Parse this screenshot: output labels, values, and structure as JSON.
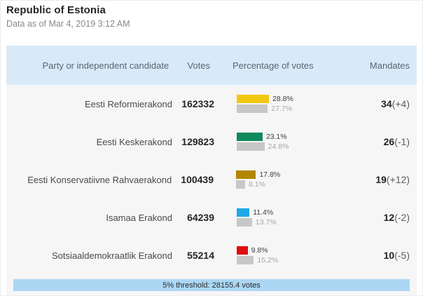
{
  "header": {
    "title": "Republic of Estonia",
    "subtitle": "Data as of Mar 4, 2019 3:12 AM"
  },
  "table": {
    "columns": [
      "Party or independent candidate",
      "Votes",
      "Percentage of votes",
      "Mandates"
    ],
    "prev_bar_color": "#c7c7c7",
    "rows": [
      {
        "party": "Eesti Reformierakond",
        "votes": "162332",
        "pct": 28.8,
        "pct_label": "28.8%",
        "prev_pct": 27.7,
        "prev_pct_label": "27.7%",
        "mandates": "34",
        "mandates_change": "(+4)",
        "color": "#f2c811"
      },
      {
        "party": "Eesti Keskerakond",
        "votes": "129823",
        "pct": 23.1,
        "pct_label": "23.1%",
        "prev_pct": 24.8,
        "prev_pct_label": "24.8%",
        "mandates": "26",
        "mandates_change": "(-1)",
        "color": "#0e8a5c"
      },
      {
        "party": "Eesti Konservatiivne Rahvaerakond",
        "votes": "100439",
        "pct": 17.8,
        "pct_label": "17.8%",
        "prev_pct": 8.1,
        "prev_pct_label": "8.1%",
        "mandates": "19",
        "mandates_change": "(+12)",
        "color": "#b38600"
      },
      {
        "party": "Isamaa Erakond",
        "votes": "64239",
        "pct": 11.4,
        "pct_label": "11.4%",
        "prev_pct": 13.7,
        "prev_pct_label": "13.7%",
        "mandates": "12",
        "mandates_change": "(-2)",
        "color": "#1da9e8"
      },
      {
        "party": "Sotsiaaldemokraatlik Erakond",
        "votes": "55214",
        "pct": 9.8,
        "pct_label": "9.8%",
        "prev_pct": 15.2,
        "prev_pct_label": "15.2%",
        "mandates": "10",
        "mandates_change": "(-5)",
        "color": "#e00d11"
      }
    ],
    "footer": {
      "threshold_label": "5% threshold: 28155.4 votes"
    }
  },
  "chart_data": {
    "type": "table",
    "title": "Republic of Estonia",
    "subtitle": "Data as of Mar 4, 2019 3:12 AM",
    "categories": [
      "Eesti Reformierakond",
      "Eesti Keskerakond",
      "Eesti Konservatiivne Rahvaerakond",
      "Isamaa Erakond",
      "Sotsiaaldemokraatlik Erakond"
    ],
    "votes": [
      162332,
      129823,
      100439,
      64239,
      55214
    ],
    "series": [
      {
        "name": "Percentage of votes (current)",
        "values": [
          28.8,
          23.1,
          17.8,
          11.4,
          9.8
        ]
      },
      {
        "name": "Percentage of votes (previous)",
        "values": [
          27.7,
          24.8,
          8.1,
          13.7,
          15.2
        ]
      }
    ],
    "mandates": [
      "34(+4)",
      "26(-1)",
      "19(+12)",
      "12(-2)",
      "10(-5)"
    ],
    "bar_colors": [
      "#f2c811",
      "#0e8a5c",
      "#b38600",
      "#1da9e8",
      "#e00d11"
    ],
    "prev_bar_color": "#c7c7c7",
    "threshold_note": "5% threshold: 28155.4 votes",
    "xlim_percent": [
      0,
      30
    ]
  }
}
